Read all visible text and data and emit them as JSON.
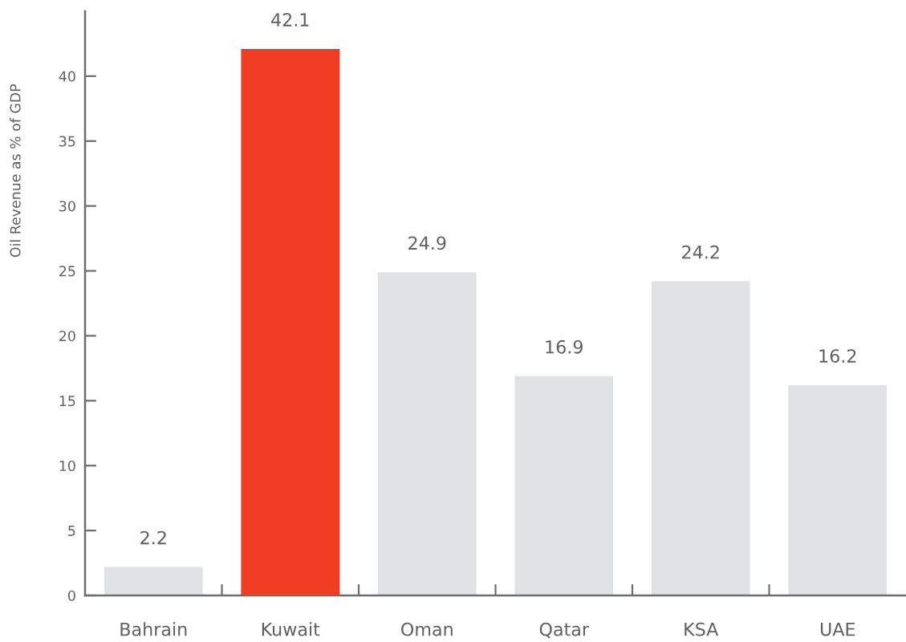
{
  "chart_data": {
    "type": "bar",
    "ylabel": "Oil Revenue as % of GDP",
    "categories": [
      "Bahrain",
      "Kuwait",
      "Oman",
      "Qatar",
      "KSA",
      "UAE"
    ],
    "values": [
      2.2,
      42.1,
      24.9,
      16.9,
      24.2,
      16.2
    ],
    "colors": [
      "#e1e2e4",
      "#ef3e23",
      "#e1e2e4",
      "#e1e2e4",
      "#e1e2e4",
      "#e1e2e4"
    ],
    "ylim": [
      0,
      45
    ],
    "yticks": [
      0,
      5,
      10,
      15,
      20,
      25,
      30,
      35,
      40
    ],
    "data_labels": true
  }
}
